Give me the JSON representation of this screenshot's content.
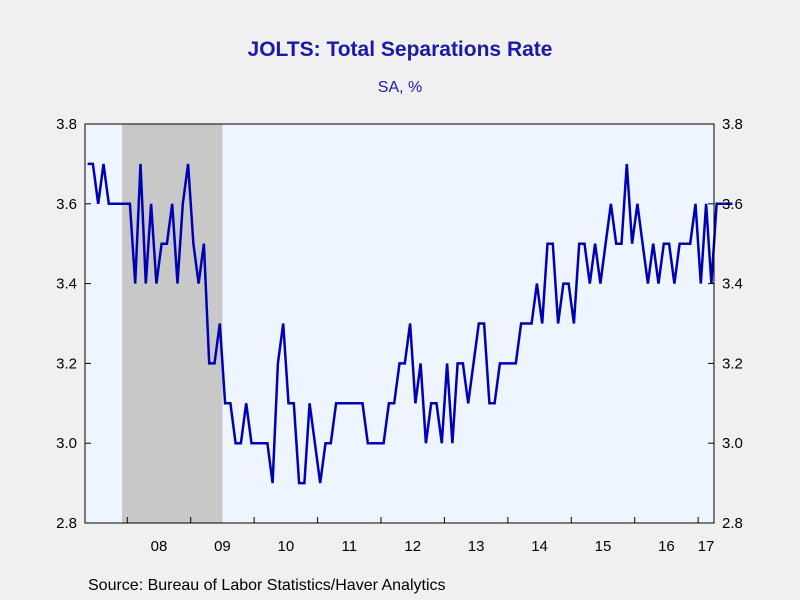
{
  "chart_data": {
    "type": "line",
    "title": "JOLTS: Total Separations Rate",
    "subtitle": "SA, %",
    "source": "Source:  Bureau of Labor Statistics/Haver Analytics",
    "xlabel": "",
    "ylabel": "",
    "ylim": [
      2.8,
      3.8
    ],
    "y_ticks": [
      "2.8",
      "3.0",
      "3.2",
      "3.4",
      "3.6",
      "3.8"
    ],
    "x_tick_labels": [
      "08",
      "09",
      "10",
      "11",
      "12",
      "13",
      "14",
      "15",
      "16",
      "17"
    ],
    "x_start": "2007-05",
    "x_end": "2017-03",
    "recession": {
      "start": "2007-12",
      "end": "2009-06"
    },
    "grid": false,
    "legend": "none",
    "colors": {
      "line": "#0000b4",
      "plot_bg": "#eef5fe",
      "recession": "#c8c8c8",
      "title": "#1a1aa6"
    },
    "series": [
      {
        "values": [
          3.7,
          3.7,
          3.6,
          3.7,
          3.6,
          3.6,
          3.6,
          3.6,
          3.6,
          3.4,
          3.7,
          3.4,
          3.6,
          3.4,
          3.5,
          3.5,
          3.6,
          3.4,
          3.6,
          3.7,
          3.5,
          3.4,
          3.5,
          3.2,
          3.2,
          3.3,
          3.1,
          3.1,
          3.0,
          3.0,
          3.1,
          3.0,
          3.0,
          3.0,
          3.0,
          2.9,
          3.2,
          3.3,
          3.1,
          3.1,
          2.9,
          2.9,
          3.1,
          3.0,
          2.9,
          3.0,
          3.0,
          3.1,
          3.1,
          3.1,
          3.1,
          3.1,
          3.1,
          3.0,
          3.0,
          3.0,
          3.0,
          3.1,
          3.1,
          3.2,
          3.2,
          3.3,
          3.1,
          3.2,
          3.0,
          3.1,
          3.1,
          3.0,
          3.2,
          3.0,
          3.2,
          3.2,
          3.1,
          3.2,
          3.3,
          3.3,
          3.1,
          3.1,
          3.2,
          3.2,
          3.2,
          3.2,
          3.3,
          3.3,
          3.3,
          3.4,
          3.3,
          3.5,
          3.5,
          3.3,
          3.4,
          3.4,
          3.3,
          3.5,
          3.5,
          3.4,
          3.5,
          3.4,
          3.5,
          3.6,
          3.5,
          3.5,
          3.7,
          3.5,
          3.6,
          3.5,
          3.4,
          3.5,
          3.4,
          3.5,
          3.5,
          3.4,
          3.5,
          3.5,
          3.5,
          3.6,
          3.4,
          3.6,
          3.4,
          3.6,
          3.6,
          3.6,
          3.6
        ]
      }
    ]
  }
}
